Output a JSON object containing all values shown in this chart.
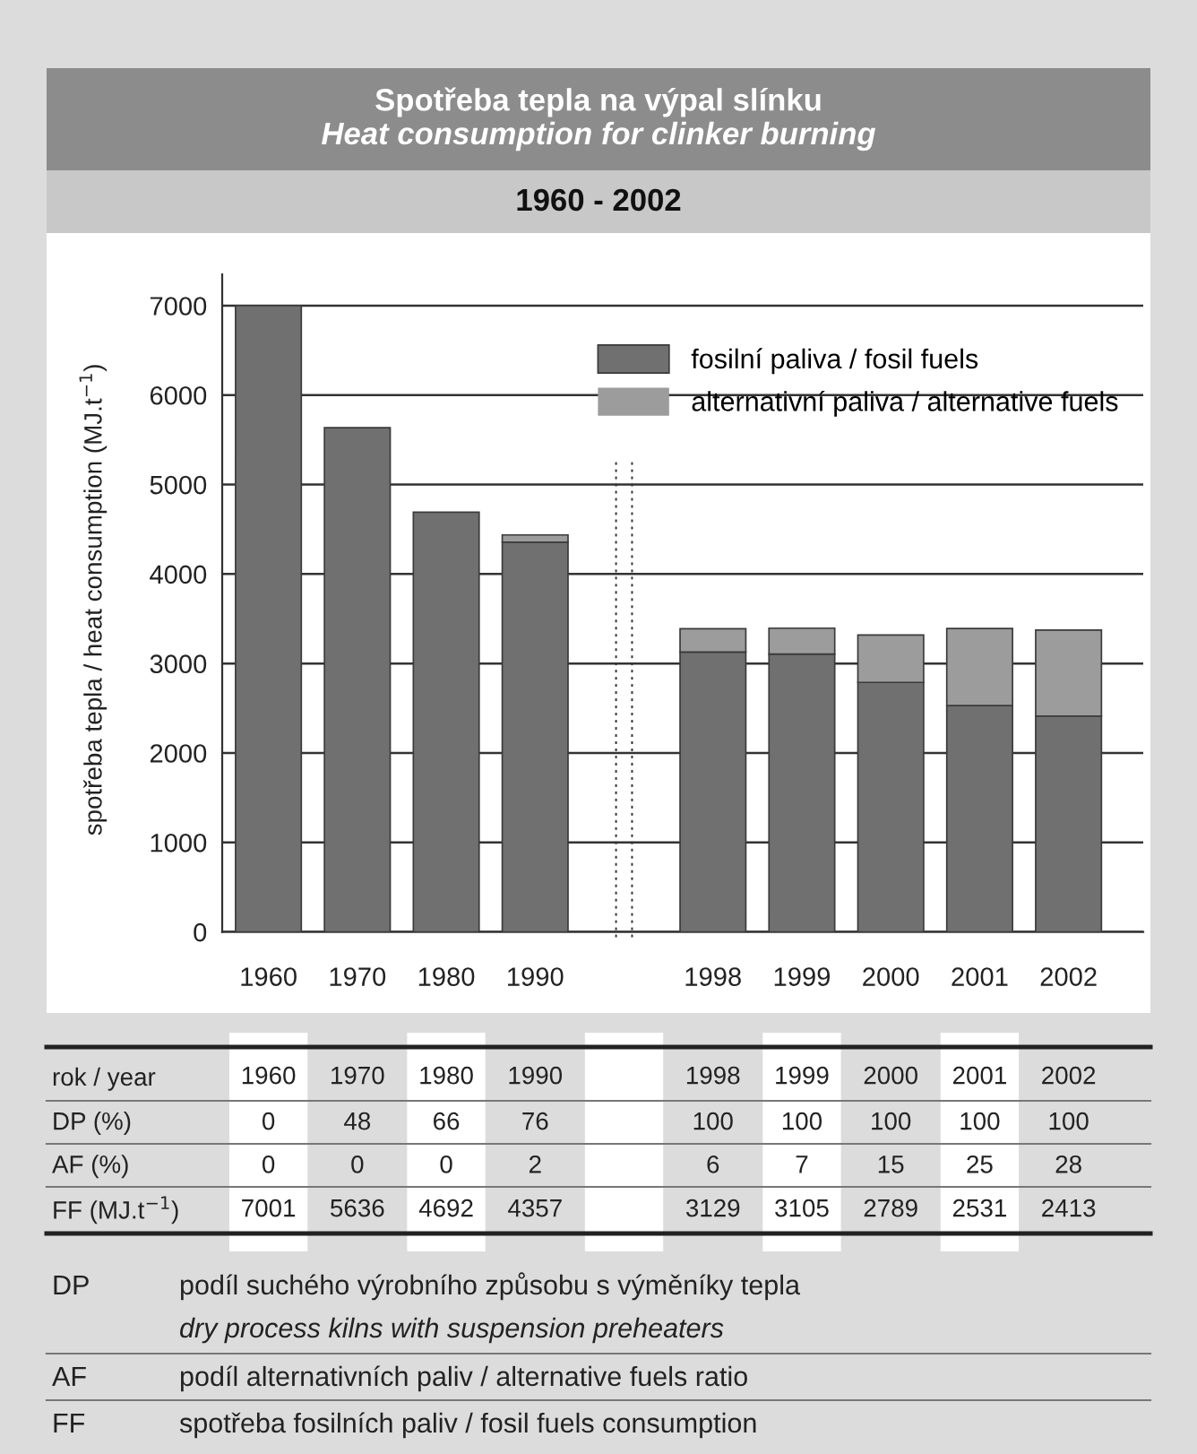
{
  "chart_data": {
    "type": "bar",
    "stacked": true,
    "title": "Spotřeba tepla na výpal slínku",
    "subtitle": "Heat consumption for clinker burning",
    "ylabel": "spotřeba tepla / heat consumption (MJ.t$^{−1}$)",
    "categories": [
      "1960",
      "1970",
      "1980",
      "1990",
      null,
      "1998",
      "1999",
      "2000",
      "2001",
      "2002"
    ],
    "series": [
      {
        "name": "fosilní paliva / fosil fuels",
        "color": "#707070",
        "values": [
          7001,
          5636,
          4692,
          4357,
          null,
          3129,
          3105,
          2789,
          2531,
          2413
        ],
        "value_labels": [
          "7001",
          "5636",
          "4692",
          "4357",
          null,
          "3129",
          "3105",
          "2789",
          "2531",
          "2413"
        ]
      },
      {
        "name": "alternativní paliva / alternative fuels",
        "color": "#9c9c9c",
        "values": [
          0,
          0,
          0,
          80,
          null,
          260,
          290,
          530,
          860,
          960
        ]
      }
    ],
    "ylim": [
      0,
      7350
    ],
    "yticks": [
      0,
      1000,
      2000,
      3000,
      4000,
      5000,
      6000,
      7000
    ],
    "grid": "y",
    "legend": "top right",
    "annotations": [
      "rok / year",
      "DP (%)",
      "0",
      "48",
      "66",
      "76",
      "100",
      "100",
      "100",
      "100",
      "100",
      "AF (%)",
      "0",
      "0",
      "0",
      "2",
      "6",
      "7",
      "15",
      "25",
      "28",
      "FF (MJ.t$^{−1}$)",
      "1960 - 2002",
      "DP",
      "podíl suchého výrobního způsobu s výměníky tepla",
      "dry process kilns with suspension preheaters",
      "AF",
      "podíl alternativních paliv / alternative fuels ratio",
      "FF",
      "spotřeba fosilních paliv / fosil fuels consumption"
    ]
  }
}
